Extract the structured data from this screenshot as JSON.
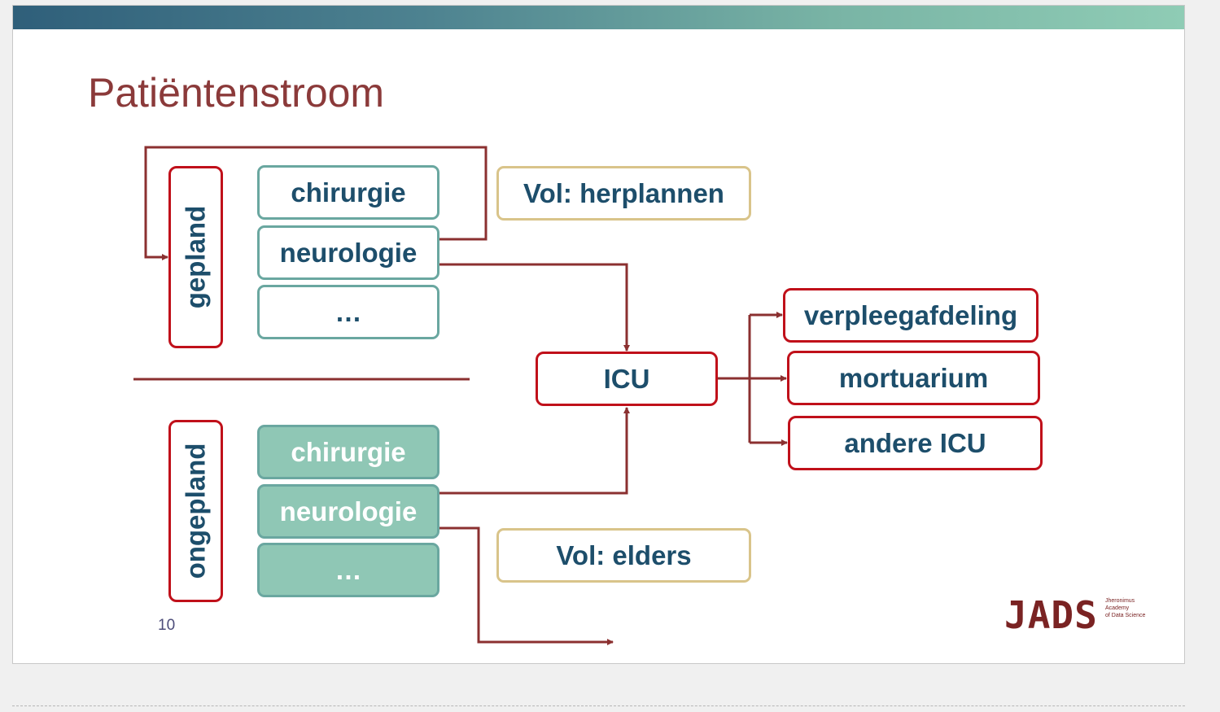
{
  "slide": {
    "title": "Patiëntenstroom",
    "page_number": "10"
  },
  "gepland": {
    "label": "gepland",
    "items": [
      "chirurgie",
      "neurologie",
      "…"
    ]
  },
  "ongepland": {
    "label": "ongepland",
    "items": [
      "chirurgie",
      "neurologie",
      "…"
    ]
  },
  "notes": {
    "full_replan": "Vol: herplannen",
    "full_elsewhere": "Vol: elders"
  },
  "icu": {
    "label": "ICU"
  },
  "destinations": [
    "verpleegafdeling",
    "mortuarium",
    "andere ICU"
  ],
  "logo": {
    "text": "JADS",
    "subtitle": [
      "Jheronimus",
      "Academy",
      "of Data Science"
    ]
  },
  "colors": {
    "title": "#8b3a3a",
    "text": "#1d4e6b",
    "red_border": "#c0101a",
    "teal_border": "#6aa7a0",
    "teal_fill": "#8fc7b5",
    "gold_border": "#d9c48a",
    "arrow": "#8b3030"
  }
}
